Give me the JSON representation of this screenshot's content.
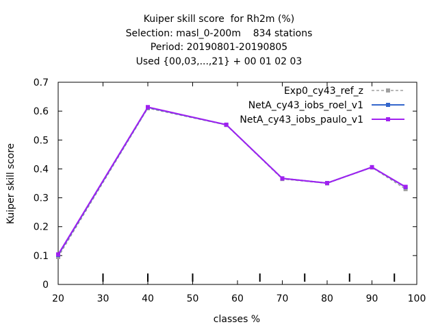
{
  "title_lines": [
    "Kuiper skill score  for Rh2m (%)",
    "Selection: masl_0-200m    834 stations",
    "Period: 20190801-20190805",
    "Used {00,03,...,21} + 00 01 02 03"
  ],
  "chart_data": {
    "type": "line",
    "title": "Kuiper skill score  for Rh2m (%)",
    "xlabel": "classes %",
    "ylabel": "Kuiper skill score",
    "xlim": [
      20,
      100
    ],
    "ylim": [
      0,
      0.7
    ],
    "xticks": [
      20,
      30,
      40,
      50,
      60,
      70,
      80,
      90,
      100
    ],
    "yticks": [
      0,
      0.1,
      0.2,
      0.3,
      0.4,
      0.5,
      0.6,
      0.7
    ],
    "ytick_labels": [
      "0",
      "0.1",
      "0.2",
      "0.3",
      "0.4",
      "0.5",
      "0.6",
      "0.7"
    ],
    "legend_position": "top-right",
    "grid": false,
    "bottom_marks_x": [
      30,
      40,
      50,
      65,
      75,
      85,
      95
    ],
    "x": [
      20,
      40,
      57.5,
      70,
      80,
      90,
      97.5
    ],
    "series": [
      {
        "name": "Exp0_cy43_ref_z",
        "values": [
          0.095,
          0.61,
          0.552,
          0.365,
          0.35,
          0.405,
          0.33
        ],
        "color": "#a0a0a0",
        "dashed": true
      },
      {
        "name": "NetA_cy43_iobs_roel_v1",
        "values": [
          0.102,
          0.613,
          0.553,
          0.367,
          0.351,
          0.406,
          0.337
        ],
        "color": "#3366cc",
        "dashed": false
      },
      {
        "name": "NetA_cy43_iobs_paulo_v1",
        "values": [
          0.104,
          0.614,
          0.553,
          0.367,
          0.351,
          0.406,
          0.338
        ],
        "color": "#a020f0",
        "dashed": false
      }
    ]
  }
}
